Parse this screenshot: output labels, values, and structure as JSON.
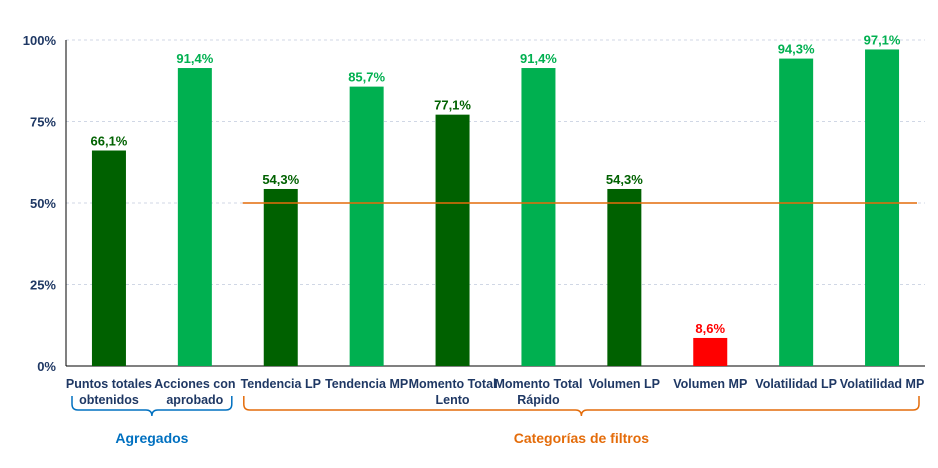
{
  "chart_data": {
    "type": "bar",
    "title": "",
    "xlabel": "",
    "ylabel": "",
    "ylim": [
      0,
      100
    ],
    "yticks": [
      "0%",
      "25%",
      "50%",
      "75%",
      "100%"
    ],
    "grid": true,
    "reference_line": {
      "value": 50,
      "color": "#e46c0a"
    },
    "categories": [
      [
        "Puntos totales",
        "obtenidos"
      ],
      [
        "Acciones con",
        "aprobado"
      ],
      [
        "Tendencia LP"
      ],
      [
        "Tendencia MP"
      ],
      [
        "Momento Total",
        "Lento"
      ],
      [
        "Momento Total",
        "Rápido"
      ],
      [
        "Volumen LP"
      ],
      [
        "Volumen MP"
      ],
      [
        "Volatilidad LP"
      ],
      [
        "Volatilidad MP"
      ]
    ],
    "values": [
      66.1,
      91.4,
      54.3,
      85.7,
      77.1,
      91.4,
      54.3,
      8.6,
      94.3,
      97.1
    ],
    "data_labels": [
      "66,1%",
      "91,4%",
      "54,3%",
      "85,7%",
      "77,1%",
      "91,4%",
      "54,3%",
      "8,6%",
      "94,3%",
      "97,1%"
    ],
    "bar_colors": [
      "#006100",
      "#00b050",
      "#006100",
      "#00b050",
      "#006100",
      "#00b050",
      "#006100",
      "#ff0000",
      "#00b050",
      "#00b050"
    ],
    "label_colors": [
      "#006100",
      "#00b050",
      "#006100",
      "#00b050",
      "#006100",
      "#00b050",
      "#006100",
      "#ff0000",
      "#00b050",
      "#00b050"
    ],
    "groups": [
      {
        "label": "Agregados",
        "from": 0,
        "to": 1,
        "color": "#0070c0"
      },
      {
        "label": "Categorías de filtros",
        "from": 2,
        "to": 9,
        "color": "#e46c0a"
      }
    ]
  }
}
